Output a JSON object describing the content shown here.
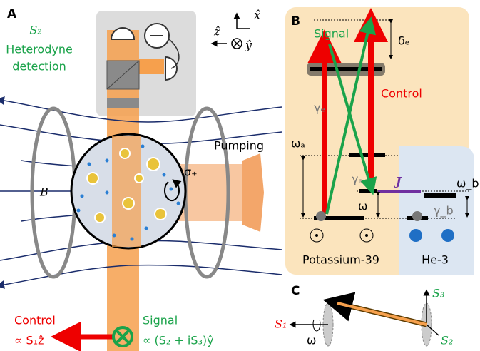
{
  "panel_a": {
    "label": "A",
    "detection": {
      "symbol": "S₂",
      "line1": "Heterodyne",
      "line2": "detection"
    },
    "pumping": "Pumping",
    "field": "B",
    "polarization": "σ₊",
    "axes": {
      "x": "x̂",
      "z": "ẑ",
      "y": "ŷ"
    },
    "control": {
      "name": "Control",
      "expr": "∝ S₁ẑ"
    },
    "signal": {
      "name": "Signal",
      "expr": "∝ (S₂ + iS₃)ŷ"
    }
  },
  "panel_b": {
    "label": "B",
    "signal": "Signal",
    "control": "Control",
    "delta_e": "δₑ",
    "gamma_e": "γₑ",
    "omega_a": "ωₐ",
    "gamma_a": "γₐ",
    "coupling": "J",
    "omega_b": "ω_b",
    "gamma_b": "γ_b",
    "omega": "ω",
    "species_1": "Potassium-39",
    "species_2": "He-3"
  },
  "panel_c": {
    "label": "C",
    "s3": "S₃",
    "s1": "S₁",
    "s2": "S₂",
    "omega": "ω"
  }
}
